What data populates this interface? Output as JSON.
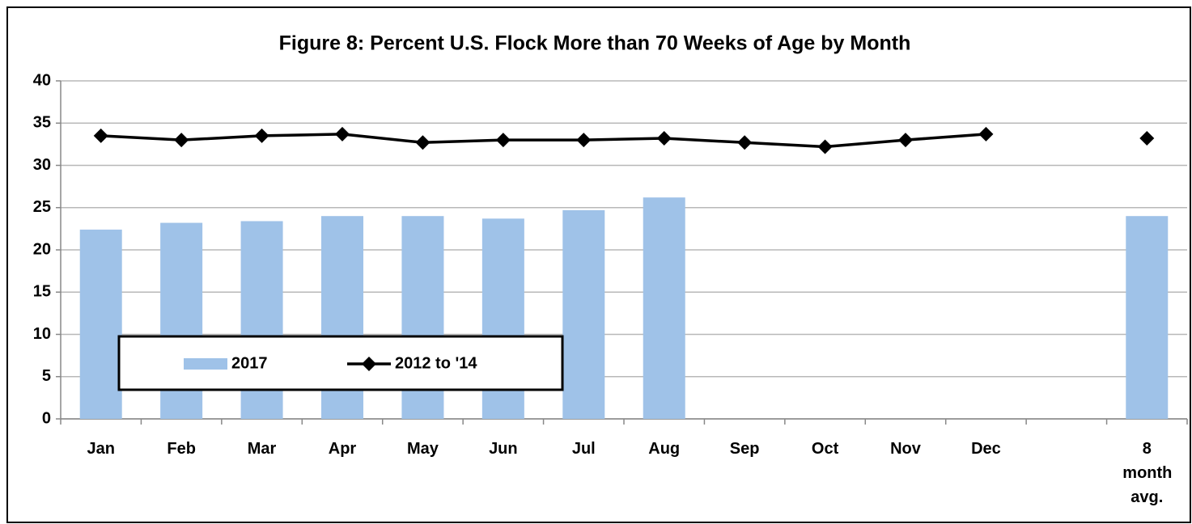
{
  "chart_data": {
    "type": "bar",
    "title": "Figure 8: Percent U.S. Flock More than 70 Weeks of Age by Month",
    "categories": [
      "Jan",
      "Feb",
      "Mar",
      "Apr",
      "May",
      "Jun",
      "Jul",
      "Aug",
      "Sep",
      "Oct",
      "Nov",
      "Dec",
      null,
      "8 month avg."
    ],
    "series": [
      {
        "name": "2017",
        "type": "bar",
        "color": "#9fc2e8",
        "values": [
          22.4,
          23.2,
          23.4,
          24.0,
          24.0,
          23.7,
          24.7,
          26.2,
          null,
          null,
          null,
          null,
          null,
          24.0
        ]
      },
      {
        "name": "2012 to '14",
        "type": "line",
        "color": "#000000",
        "values": [
          33.5,
          33.0,
          33.5,
          33.7,
          32.7,
          33.0,
          33.0,
          33.2,
          32.7,
          32.2,
          33.0,
          33.7,
          null,
          33.2
        ]
      }
    ],
    "ylim": [
      0,
      40
    ],
    "yticks": [
      0,
      5,
      10,
      15,
      20,
      25,
      30,
      35,
      40
    ],
    "grid": true,
    "legend_position": "lower left"
  }
}
